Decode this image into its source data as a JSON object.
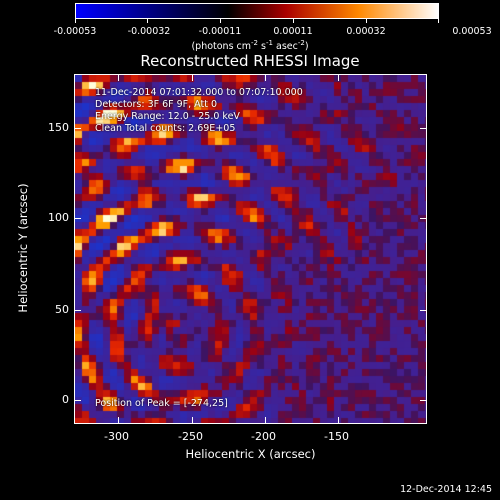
{
  "colorbar": {
    "ticks": [
      "-0.00053",
      "-0.00032",
      "-0.00011",
      "0.00011",
      "0.00032",
      "0.00053"
    ],
    "unit_base": "(photons cm",
    "unit_exp1": "-2",
    "unit_mid1": " s",
    "unit_exp2": "-1",
    "unit_mid2": " asec",
    "unit_exp3": "-2",
    "unit_end": ")",
    "colors": [
      "#0000ff",
      "#000000",
      "#aa0000",
      "#ff8800",
      "#ffffff"
    ]
  },
  "title": "Reconstructed RHESSI Image",
  "info": {
    "time_range": "11-Dec-2014 07:01:32.000 to 07:07:10.000",
    "detectors": "Detectors: 3F 6F 9F, Att 0",
    "energy": "Energy Range: 12.0 - 25.0 keV",
    "clean": "Clean     Total counts: 2.69E+05",
    "peak": "Position of Peak = [-274,25]"
  },
  "axes": {
    "x_label": "Heliocentric X (arcsec)",
    "y_label": "Heliocentric Y (arcsec)",
    "x_ticks": [
      "-300",
      "-250",
      "-200",
      "-150"
    ],
    "y_ticks": [
      "0",
      "50",
      "100",
      "150"
    ]
  },
  "timestamp": "12-Dec-2014 12:45"
}
